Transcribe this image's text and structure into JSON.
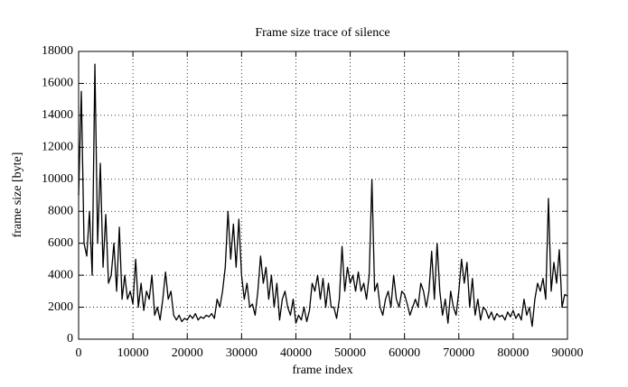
{
  "chart_data": {
    "type": "line",
    "title": "Frame size trace of silence",
    "xlabel": "frame index",
    "ylabel": "frame size [byte]",
    "xlim": [
      0,
      90000
    ],
    "xticks": [
      0,
      10000,
      20000,
      30000,
      40000,
      50000,
      60000,
      70000,
      80000,
      90000
    ],
    "ylim": [
      0,
      18000
    ],
    "yticks": [
      0,
      2000,
      4000,
      6000,
      8000,
      10000,
      12000,
      14000,
      16000,
      18000
    ],
    "grid": true,
    "x": [
      0,
      500,
      1000,
      1500,
      2000,
      2500,
      3000,
      3500,
      4000,
      4500,
      5000,
      5500,
      6000,
      6500,
      7000,
      7500,
      8000,
      8500,
      9000,
      9500,
      10000,
      10500,
      11000,
      11500,
      12000,
      12500,
      13000,
      13500,
      14000,
      14500,
      15000,
      15500,
      16000,
      16500,
      17000,
      17500,
      18000,
      18500,
      19000,
      19500,
      20000,
      20500,
      21000,
      21500,
      22000,
      22500,
      23000,
      23500,
      24000,
      24500,
      25000,
      25500,
      26000,
      26500,
      27000,
      27500,
      28000,
      28500,
      29000,
      29500,
      30000,
      30500,
      31000,
      31500,
      32000,
      32500,
      33000,
      33500,
      34000,
      34500,
      35000,
      35500,
      36000,
      36500,
      37000,
      37500,
      38000,
      38500,
      39000,
      39500,
      40000,
      40500,
      41000,
      41500,
      42000,
      42500,
      43000,
      43500,
      44000,
      44500,
      45000,
      45500,
      46000,
      46500,
      47000,
      47500,
      48000,
      48500,
      49000,
      49500,
      50000,
      50500,
      51000,
      51500,
      52000,
      52500,
      53000,
      53500,
      54000,
      54500,
      55000,
      55500,
      56000,
      56500,
      57000,
      57500,
      58000,
      58500,
      59000,
      59500,
      60000,
      60500,
      61000,
      61500,
      62000,
      62500,
      63000,
      63500,
      64000,
      64500,
      65000,
      65500,
      66000,
      66500,
      67000,
      67500,
      68000,
      68500,
      69000,
      69500,
      70000,
      70500,
      71000,
      71500,
      72000,
      72500,
      73000,
      73500,
      74000,
      74500,
      75000,
      75500,
      76000,
      76500,
      77000,
      77500,
      78000,
      78500,
      79000,
      79500,
      80000,
      80500,
      81000,
      81500,
      82000,
      82500,
      83000,
      83500,
      84000,
      84500,
      85000,
      85500,
      86000,
      86500,
      87000,
      87500,
      88000,
      88500,
      89000,
      89500,
      90000
    ],
    "series": [
      {
        "name": "silence",
        "color": "#000000",
        "values": [
          9000,
          15500,
          6000,
          5200,
          8000,
          4000,
          17200,
          6000,
          11000,
          4500,
          7800,
          3500,
          4000,
          6000,
          3000,
          7000,
          2500,
          4000,
          2500,
          3000,
          2200,
          5000,
          2000,
          3500,
          1800,
          3000,
          2500,
          4000,
          1500,
          2000,
          1200,
          2500,
          4200,
          2500,
          3000,
          1500,
          1200,
          1500,
          1100,
          1300,
          1200,
          1500,
          1300,
          1600,
          1200,
          1400,
          1300,
          1500,
          1400,
          1600,
          1300,
          2500,
          2000,
          3000,
          4500,
          8000,
          5000,
          7200,
          4500,
          7500,
          4000,
          2500,
          3500,
          2000,
          2200,
          1500,
          3000,
          5200,
          3500,
          4500,
          2500,
          4000,
          2000,
          3500,
          1200,
          2500,
          3000,
          2000,
          1500,
          2500,
          1000,
          1500,
          1200,
          2000,
          1100,
          1800,
          3500,
          3000,
          4000,
          2500,
          3800,
          2000,
          3500,
          2000,
          2000,
          1300,
          2500,
          5800,
          3000,
          4500,
          3500,
          4000,
          3000,
          4200,
          3000,
          3500,
          2500,
          4000,
          10000,
          3000,
          3500,
          2000,
          1500,
          2500,
          3000,
          2000,
          4000,
          2500,
          2000,
          3000,
          2800,
          2200,
          1500,
          2000,
          2500,
          2000,
          3500,
          3000,
          2000,
          3000,
          5500,
          2500,
          6000,
          3000,
          1500,
          2500,
          1000,
          3000,
          2000,
          1500,
          3000,
          5000,
          3500,
          4800,
          2000,
          3800,
          1500,
          2500,
          1200,
          2000,
          1800,
          1300,
          1700,
          1200,
          1600,
          1400,
          1500,
          1200,
          1700,
          1400,
          1800,
          1300,
          1600,
          1200,
          2500,
          1500,
          2000,
          800,
          2500,
          3500,
          3000,
          3800,
          2500,
          8800,
          3000,
          4800,
          3500,
          5600,
          2000,
          2800,
          2700
        ]
      }
    ]
  }
}
